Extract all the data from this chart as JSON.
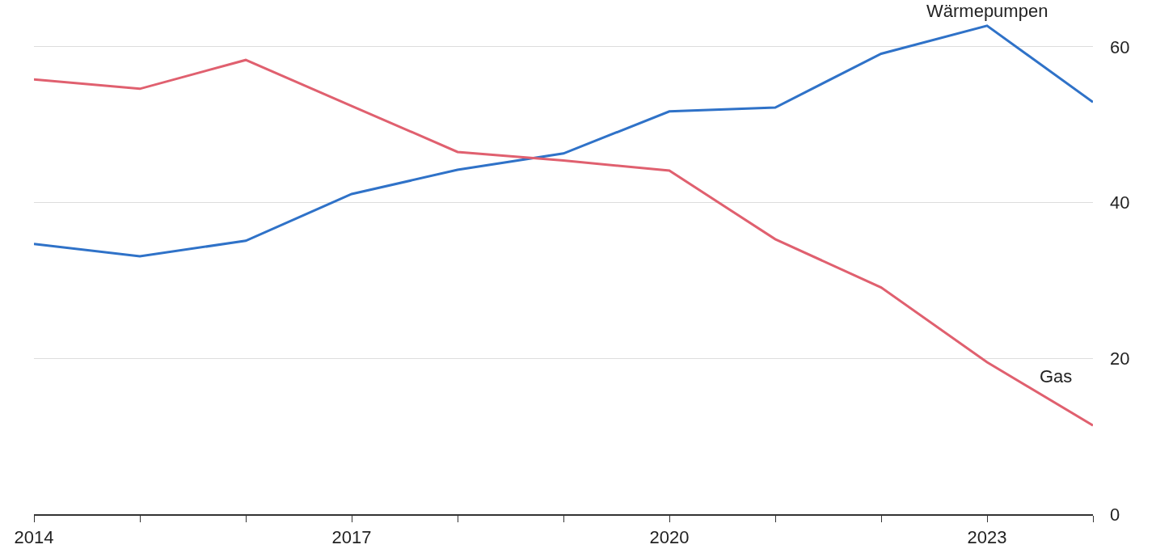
{
  "chart_data": {
    "type": "line",
    "x": [
      2014,
      2015,
      2016,
      2017,
      2018,
      2019,
      2020,
      2021,
      2022,
      2023,
      2024
    ],
    "series": [
      {
        "name": "Wärmepumpen",
        "color": "#2f72c8",
        "values": [
          34.7,
          33.1,
          35.1,
          41.1,
          44.2,
          46.3,
          51.7,
          52.2,
          59.1,
          62.7,
          52.9
        ]
      },
      {
        "name": "Gas",
        "color": "#e0606f",
        "values": [
          55.8,
          54.6,
          58.3,
          52.4,
          46.5,
          45.4,
          44.1,
          35.3,
          29.1,
          19.5,
          11.4
        ]
      }
    ],
    "xlim": [
      2014,
      2024
    ],
    "xticks": [
      2014,
      {
        "value": 2015,
        "label": null
      },
      {
        "value": 2016,
        "label": null
      },
      2017,
      {
        "value": 2018,
        "label": null
      },
      {
        "value": 2019,
        "label": null
      },
      2020,
      {
        "value": 2021,
        "label": null
      },
      {
        "value": 2022,
        "label": null
      },
      2023,
      {
        "value": 2024,
        "label": null
      }
    ],
    "ylim": [
      0,
      66
    ],
    "yticks": [
      0,
      20,
      40,
      60
    ],
    "grid": "y",
    "legend": false,
    "marker": "none",
    "line_style": "solid"
  }
}
